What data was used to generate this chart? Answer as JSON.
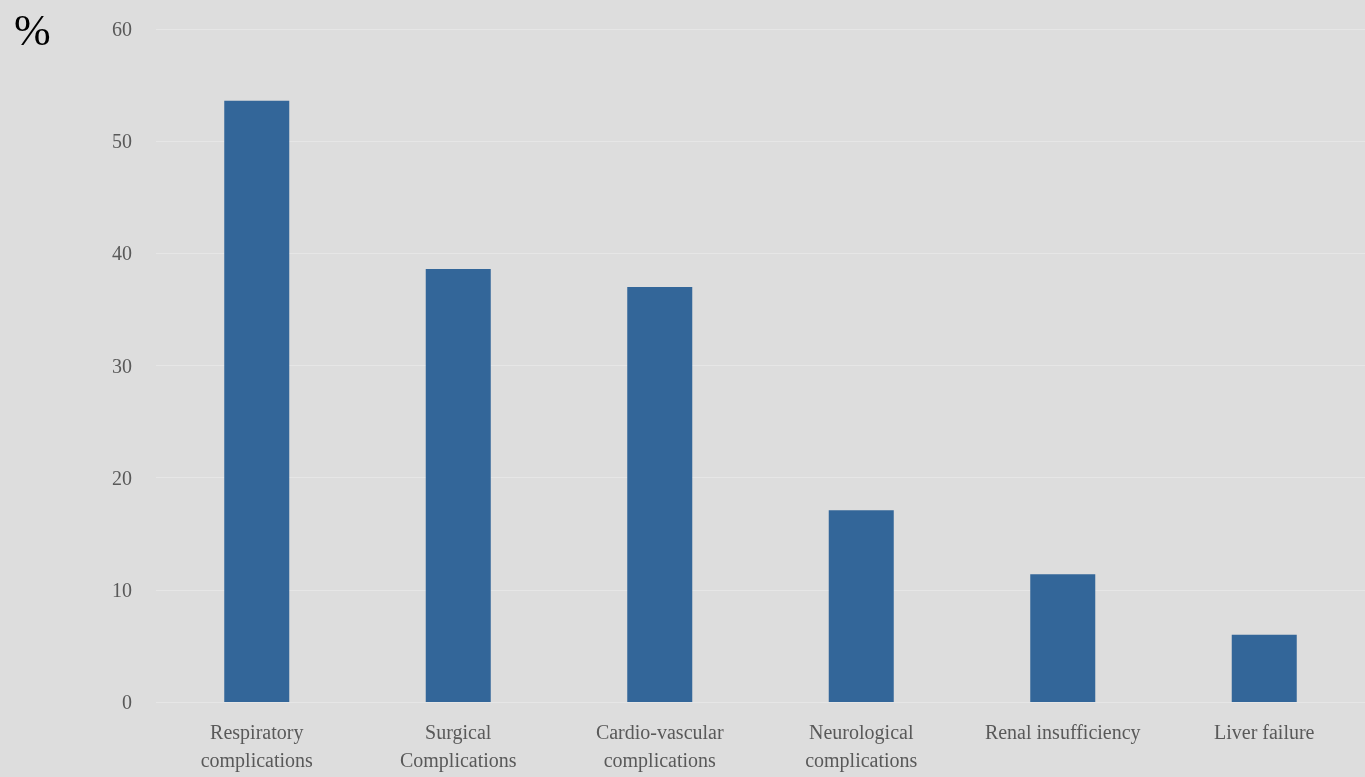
{
  "chart_data": {
    "type": "bar",
    "ylabel": "%",
    "categories": [
      "Respiratory\ncomplications",
      "Surgical\nComplications",
      "Cardio-vascular\ncomplications",
      "Neurological\ncomplications",
      "Renal insufficiency",
      "Liver failure"
    ],
    "values": [
      53.6,
      38.6,
      37.0,
      17.1,
      11.4,
      6.0
    ],
    "color": "#336699",
    "ylim": [
      0,
      60
    ],
    "yticks": [
      0,
      10,
      20,
      30,
      40,
      50,
      60
    ],
    "grid": "y"
  }
}
